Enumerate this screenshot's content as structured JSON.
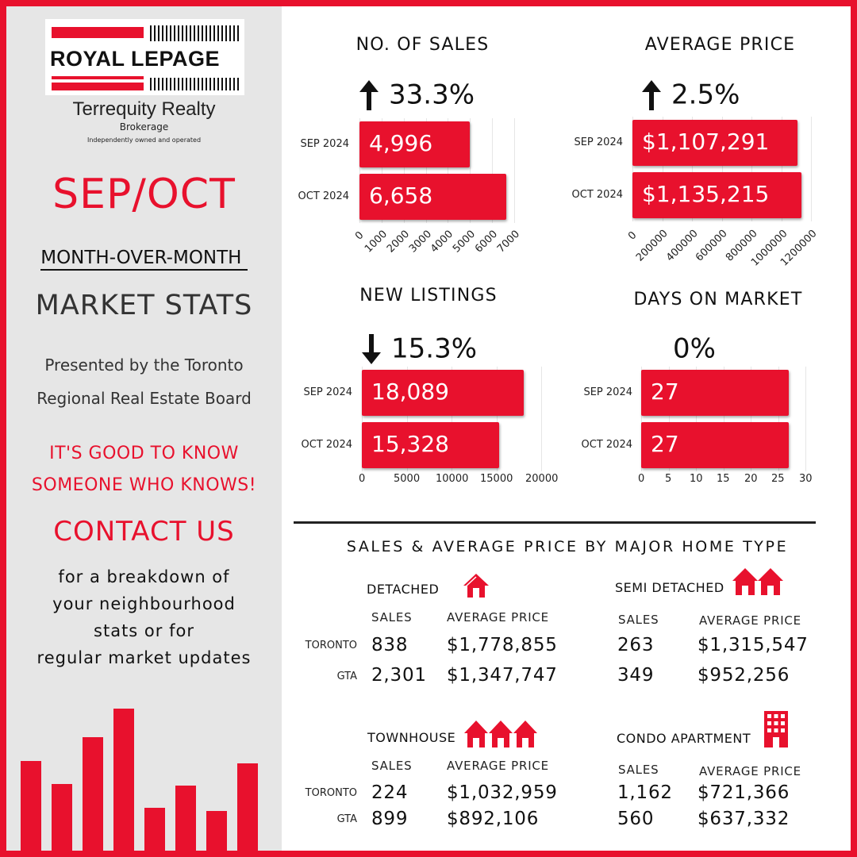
{
  "brand": {
    "logo_text": "ROYAL LEPAGE",
    "company": "Terrequity Realty",
    "brokerage": "Brokerage",
    "tagline": "Independently owned and operated",
    "accent": "#e8112d"
  },
  "sidebar": {
    "period": "SEP/OCT",
    "subtitle": "MONTH-OVER-MONTH ",
    "title": "MARKET STATS",
    "presented_1": "Presented by the Toronto",
    "presented_2": "Regional Real Estate Board",
    "slogan_1": "IT'S GOOD TO KNOW",
    "slogan_2": "SOMEONE WHO KNOWS!",
    "contact": "CONTACT US",
    "body_1": "for a breakdown of",
    "body_2": "your neighbourhood",
    "body_3": "stats or for",
    "body_4": "regular market updates",
    "decor_bar_levels": [
      0.61,
      0.45,
      0.77,
      0.96,
      0.29,
      0.44,
      0.27,
      0.59
    ]
  },
  "chart_data": [
    {
      "type": "bar",
      "orientation": "horizontal",
      "title": "NO. OF SALES",
      "change_direction": "up",
      "change": "33.3%",
      "categories": [
        "SEP 2024",
        "OCT 2024"
      ],
      "values": [
        4996,
        6658
      ],
      "value_labels": [
        "4,996",
        "6,658"
      ],
      "xlim": [
        0,
        7000
      ],
      "ticks": [
        "0",
        "1000",
        "2000",
        "3000",
        "4000",
        "5000",
        "6000",
        "7000"
      ],
      "tick_values": [
        0,
        1000,
        2000,
        3000,
        4000,
        5000,
        6000,
        7000
      ],
      "tick_rotated": true
    },
    {
      "type": "bar",
      "orientation": "horizontal",
      "title": "AVERAGE PRICE",
      "change_direction": "up",
      "change": "2.5%",
      "categories": [
        "SEP 2024",
        "OCT 2024"
      ],
      "values": [
        1107291,
        1135215
      ],
      "value_labels": [
        "$1,107,291",
        "$1,135,215"
      ],
      "xlim": [
        0,
        1200000
      ],
      "ticks": [
        "0",
        "200000",
        "400000",
        "600000",
        "800000",
        "1000000",
        "1200000"
      ],
      "tick_values": [
        0,
        200000,
        400000,
        600000,
        800000,
        1000000,
        1200000
      ],
      "tick_rotated": true
    },
    {
      "type": "bar",
      "orientation": "horizontal",
      "title": "NEW LISTINGS",
      "change_direction": "down",
      "change": "15.3%",
      "categories": [
        "SEP 2024",
        "OCT 2024"
      ],
      "values": [
        18089,
        15328
      ],
      "value_labels": [
        "18,089",
        "15,328"
      ],
      "xlim": [
        0,
        20000
      ],
      "ticks": [
        "0",
        "5000",
        "10000",
        "15000",
        "20000"
      ],
      "tick_values": [
        0,
        5000,
        10000,
        15000,
        20000
      ],
      "tick_rotated": false
    },
    {
      "type": "bar",
      "orientation": "horizontal",
      "title": "DAYS ON MARKET",
      "change_direction": "none",
      "change": "0%",
      "categories": [
        "SEP 2024",
        "OCT 2024"
      ],
      "values": [
        27,
        27
      ],
      "value_labels": [
        "27",
        "27"
      ],
      "xlim": [
        0,
        30
      ],
      "ticks": [
        "0",
        "5",
        "10",
        "15",
        "20",
        "25",
        "30"
      ],
      "tick_values": [
        0,
        5,
        10,
        15,
        20,
        25,
        30
      ],
      "tick_rotated": false
    }
  ],
  "home_types": {
    "title": "SALES & AVERAGE PRICE BY MAJOR HOME TYPE",
    "col_sales": "SALES",
    "col_price": "AVERAGE PRICE",
    "region_toronto": "TORONTO",
    "region_gta": "GTA",
    "detached": {
      "name": "DETACHED",
      "icon": "house-icon",
      "toronto_sales": "838",
      "toronto_price": "$1,778,855",
      "gta_sales": "2,301",
      "gta_price": "$1,347,747"
    },
    "semi": {
      "name": "SEMI DETACHED",
      "icon": "two-houses-icon",
      "toronto_sales": "263",
      "toronto_price": "$1,315,547",
      "gta_sales": "349",
      "gta_price": "$952,256"
    },
    "townhouse": {
      "name": "TOWNHOUSE",
      "icon": "three-houses-icon",
      "toronto_sales": "224",
      "toronto_price": "$1,032,959",
      "gta_sales": "899",
      "gta_price": "$892,106"
    },
    "condo": {
      "name": "CONDO APARTMENT",
      "icon": "apartment-building-icon",
      "toronto_sales": "1,162",
      "toronto_price": "$721,366",
      "gta_sales": "560",
      "gta_price": "$637,332"
    }
  }
}
